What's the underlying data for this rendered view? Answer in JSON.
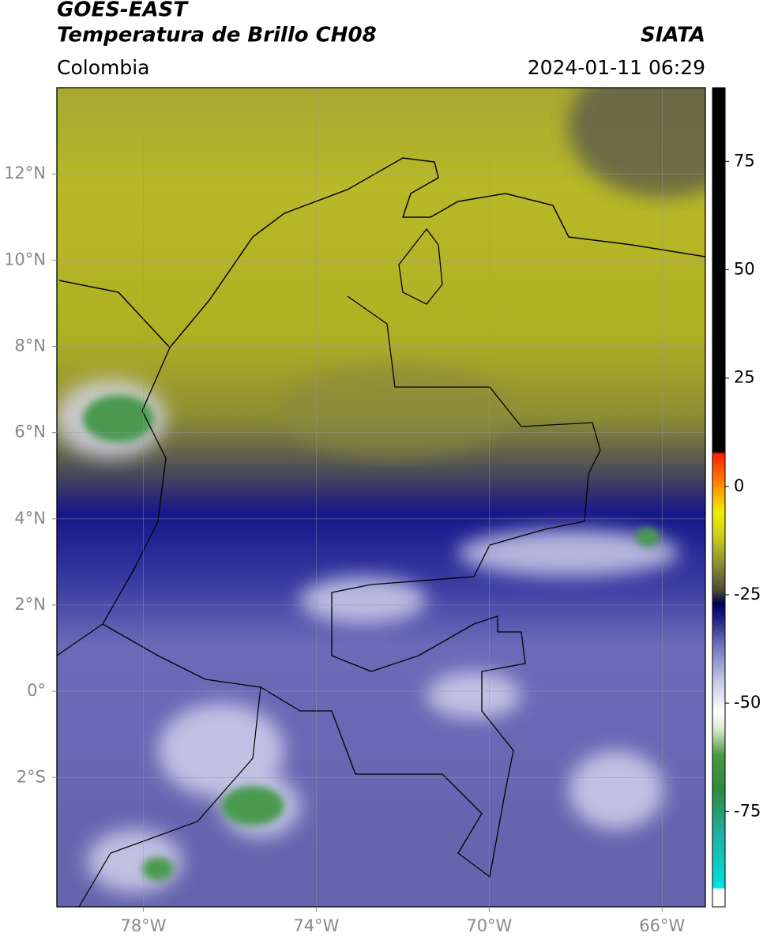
{
  "header": {
    "title_line1": "GOES-EAST",
    "title_line2": "Temperatura de Brillo CH08",
    "source": "SIATA",
    "region": "Colombia",
    "datetime": "2024-01-11 06:29"
  },
  "map": {
    "xlim": [
      -80,
      -65
    ],
    "ylim": [
      -5,
      14
    ],
    "grid": true,
    "xticks": [
      {
        "value": -78,
        "label": "78°W"
      },
      {
        "value": -74,
        "label": "74°W"
      },
      {
        "value": -70,
        "label": "70°W"
      },
      {
        "value": -66,
        "label": "66°W"
      }
    ],
    "yticks": [
      {
        "value": 12,
        "label": "12°N"
      },
      {
        "value": 10,
        "label": "10°N"
      },
      {
        "value": 8,
        "label": "8°N"
      },
      {
        "value": 6,
        "label": "6°N"
      },
      {
        "value": 4,
        "label": "4°N"
      },
      {
        "value": 2,
        "label": "2°N"
      },
      {
        "value": 0,
        "label": "0°"
      },
      {
        "value": -2,
        "label": "2°S"
      }
    ]
  },
  "colorbar": {
    "clim": [
      -97,
      92
    ],
    "ticks": [
      75,
      50,
      25,
      0,
      -25,
      -50,
      -75
    ],
    "stops": [
      {
        "value": -97,
        "color": "#ffffff"
      },
      {
        "value": -93,
        "color": "#ffffff"
      },
      {
        "value": -92.5,
        "color": "#00e0e0"
      },
      {
        "value": -80,
        "color": "#20b0a0"
      },
      {
        "value": -70,
        "color": "#2e8b3e"
      },
      {
        "value": -62,
        "color": "#4a9a40"
      },
      {
        "value": -56,
        "color": "#d8ead0"
      },
      {
        "value": -52,
        "color": "#ffffff"
      },
      {
        "value": -45,
        "color": "#c8c8e8"
      },
      {
        "value": -36,
        "color": "#6a6ab8"
      },
      {
        "value": -30,
        "color": "#1a1a80"
      },
      {
        "value": -27,
        "color": "#000050"
      },
      {
        "value": -24,
        "color": "#4a4a3a"
      },
      {
        "value": -18,
        "color": "#8c8c30"
      },
      {
        "value": -12,
        "color": "#c8c820"
      },
      {
        "value": -6,
        "color": "#f0f000"
      },
      {
        "value": 0,
        "color": "#ff9000"
      },
      {
        "value": 7.5,
        "color": "#ff2000"
      },
      {
        "value": 8,
        "color": "#000000"
      },
      {
        "value": 92,
        "color": "#000000"
      }
    ]
  }
}
